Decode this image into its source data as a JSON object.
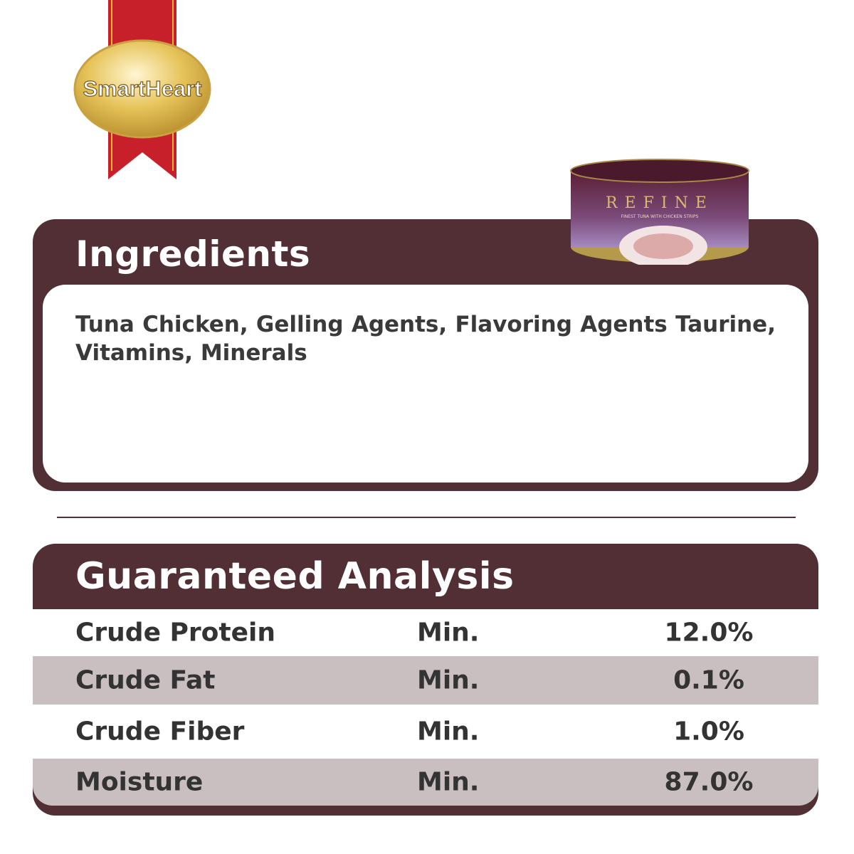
{
  "brand": {
    "logo_text": "SmartHeart",
    "colors": {
      "ribbon": "#c8202a",
      "gold": "#e6c45a",
      "maroon": "#522f35"
    }
  },
  "product": {
    "name": "REFINE",
    "subtitle": "FINEST TUNA WITH CHICKEN STRIPS"
  },
  "ingredients": {
    "title": "Ingredients",
    "text": "Tuna Chicken, Gelling Agents, Flavoring Agents Taurine, Vitamins, Minerals"
  },
  "analysis": {
    "title": "Guaranteed Analysis",
    "rows": [
      {
        "name": "Crude Protein",
        "type": "Min.",
        "value": "12.0%"
      },
      {
        "name": "Crude Fat",
        "type": "Min.",
        "value": "0.1%"
      },
      {
        "name": "Crude Fiber",
        "type": "Min.",
        "value": "1.0%"
      },
      {
        "name": "Moisture",
        "type": "Min.",
        "value": "87.0%"
      }
    ]
  }
}
